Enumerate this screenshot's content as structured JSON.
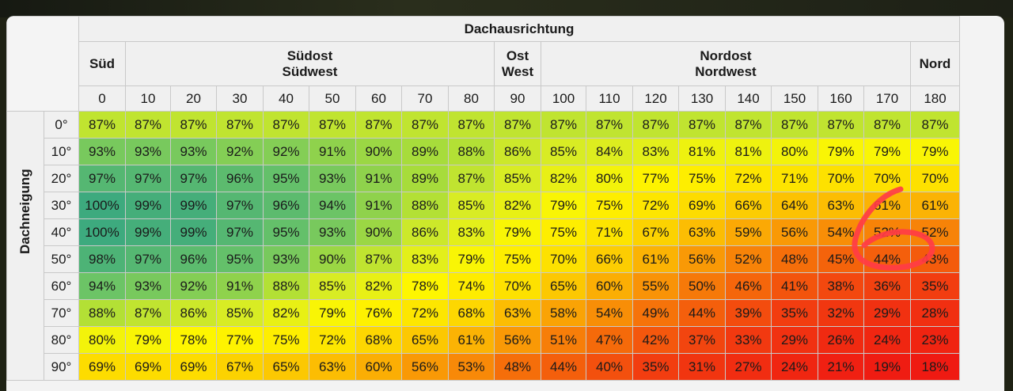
{
  "colors": {
    "scale_high": "#3daa7e",
    "scale_mid": "#fef600",
    "scale_low": "#ef1a12",
    "annotation": "#ff3c46"
  },
  "table": {
    "top_header": "Dachausrichtung",
    "side_header": "Dachneigung",
    "direction_groups": [
      {
        "label": "Süd",
        "span": 1
      },
      {
        "label": "Südost\nSüdwest",
        "span": 8
      },
      {
        "label": "Ost\nWest",
        "span": 1
      },
      {
        "label": "Nordost\nNordwest",
        "span": 8
      },
      {
        "label": "Nord",
        "span": 1
      }
    ],
    "azimuths": [
      "0",
      "10",
      "20",
      "30",
      "40",
      "50",
      "60",
      "70",
      "80",
      "90",
      "100",
      "110",
      "120",
      "130",
      "140",
      "150",
      "160",
      "170",
      "180"
    ],
    "tilts": [
      "0°",
      "10°",
      "20°",
      "30°",
      "40°",
      "50°",
      "60°",
      "70°",
      "80°",
      "90°"
    ],
    "values": [
      [
        87,
        87,
        87,
        87,
        87,
        87,
        87,
        87,
        87,
        87,
        87,
        87,
        87,
        87,
        87,
        87,
        87,
        87,
        87
      ],
      [
        93,
        93,
        93,
        92,
        92,
        91,
        90,
        89,
        88,
        86,
        85,
        84,
        83,
        81,
        81,
        80,
        79,
        79,
        79
      ],
      [
        97,
        97,
        97,
        96,
        95,
        93,
        91,
        89,
        87,
        85,
        82,
        80,
        77,
        75,
        72,
        71,
        70,
        70,
        70
      ],
      [
        100,
        99,
        99,
        97,
        96,
        94,
        91,
        88,
        85,
        82,
        79,
        75,
        72,
        69,
        66,
        64,
        63,
        61,
        61
      ],
      [
        100,
        99,
        99,
        97,
        95,
        93,
        90,
        86,
        83,
        79,
        75,
        71,
        67,
        63,
        59,
        56,
        54,
        52,
        52
      ],
      [
        98,
        97,
        96,
        95,
        93,
        90,
        87,
        83,
        79,
        75,
        70,
        66,
        61,
        56,
        52,
        48,
        45,
        44,
        43
      ],
      [
        94,
        93,
        92,
        91,
        88,
        85,
        82,
        78,
        74,
        70,
        65,
        60,
        55,
        50,
        46,
        41,
        38,
        36,
        35
      ],
      [
        88,
        87,
        86,
        85,
        82,
        79,
        76,
        72,
        68,
        63,
        58,
        54,
        49,
        44,
        39,
        35,
        32,
        29,
        28
      ],
      [
        80,
        79,
        78,
        77,
        75,
        72,
        68,
        65,
        61,
        56,
        51,
        47,
        42,
        37,
        33,
        29,
        26,
        24,
        23
      ],
      [
        69,
        69,
        69,
        67,
        65,
        63,
        60,
        56,
        53,
        48,
        44,
        40,
        35,
        31,
        27,
        24,
        21,
        19,
        18
      ]
    ],
    "unit": "%"
  },
  "annotation": {
    "text": "6"
  }
}
